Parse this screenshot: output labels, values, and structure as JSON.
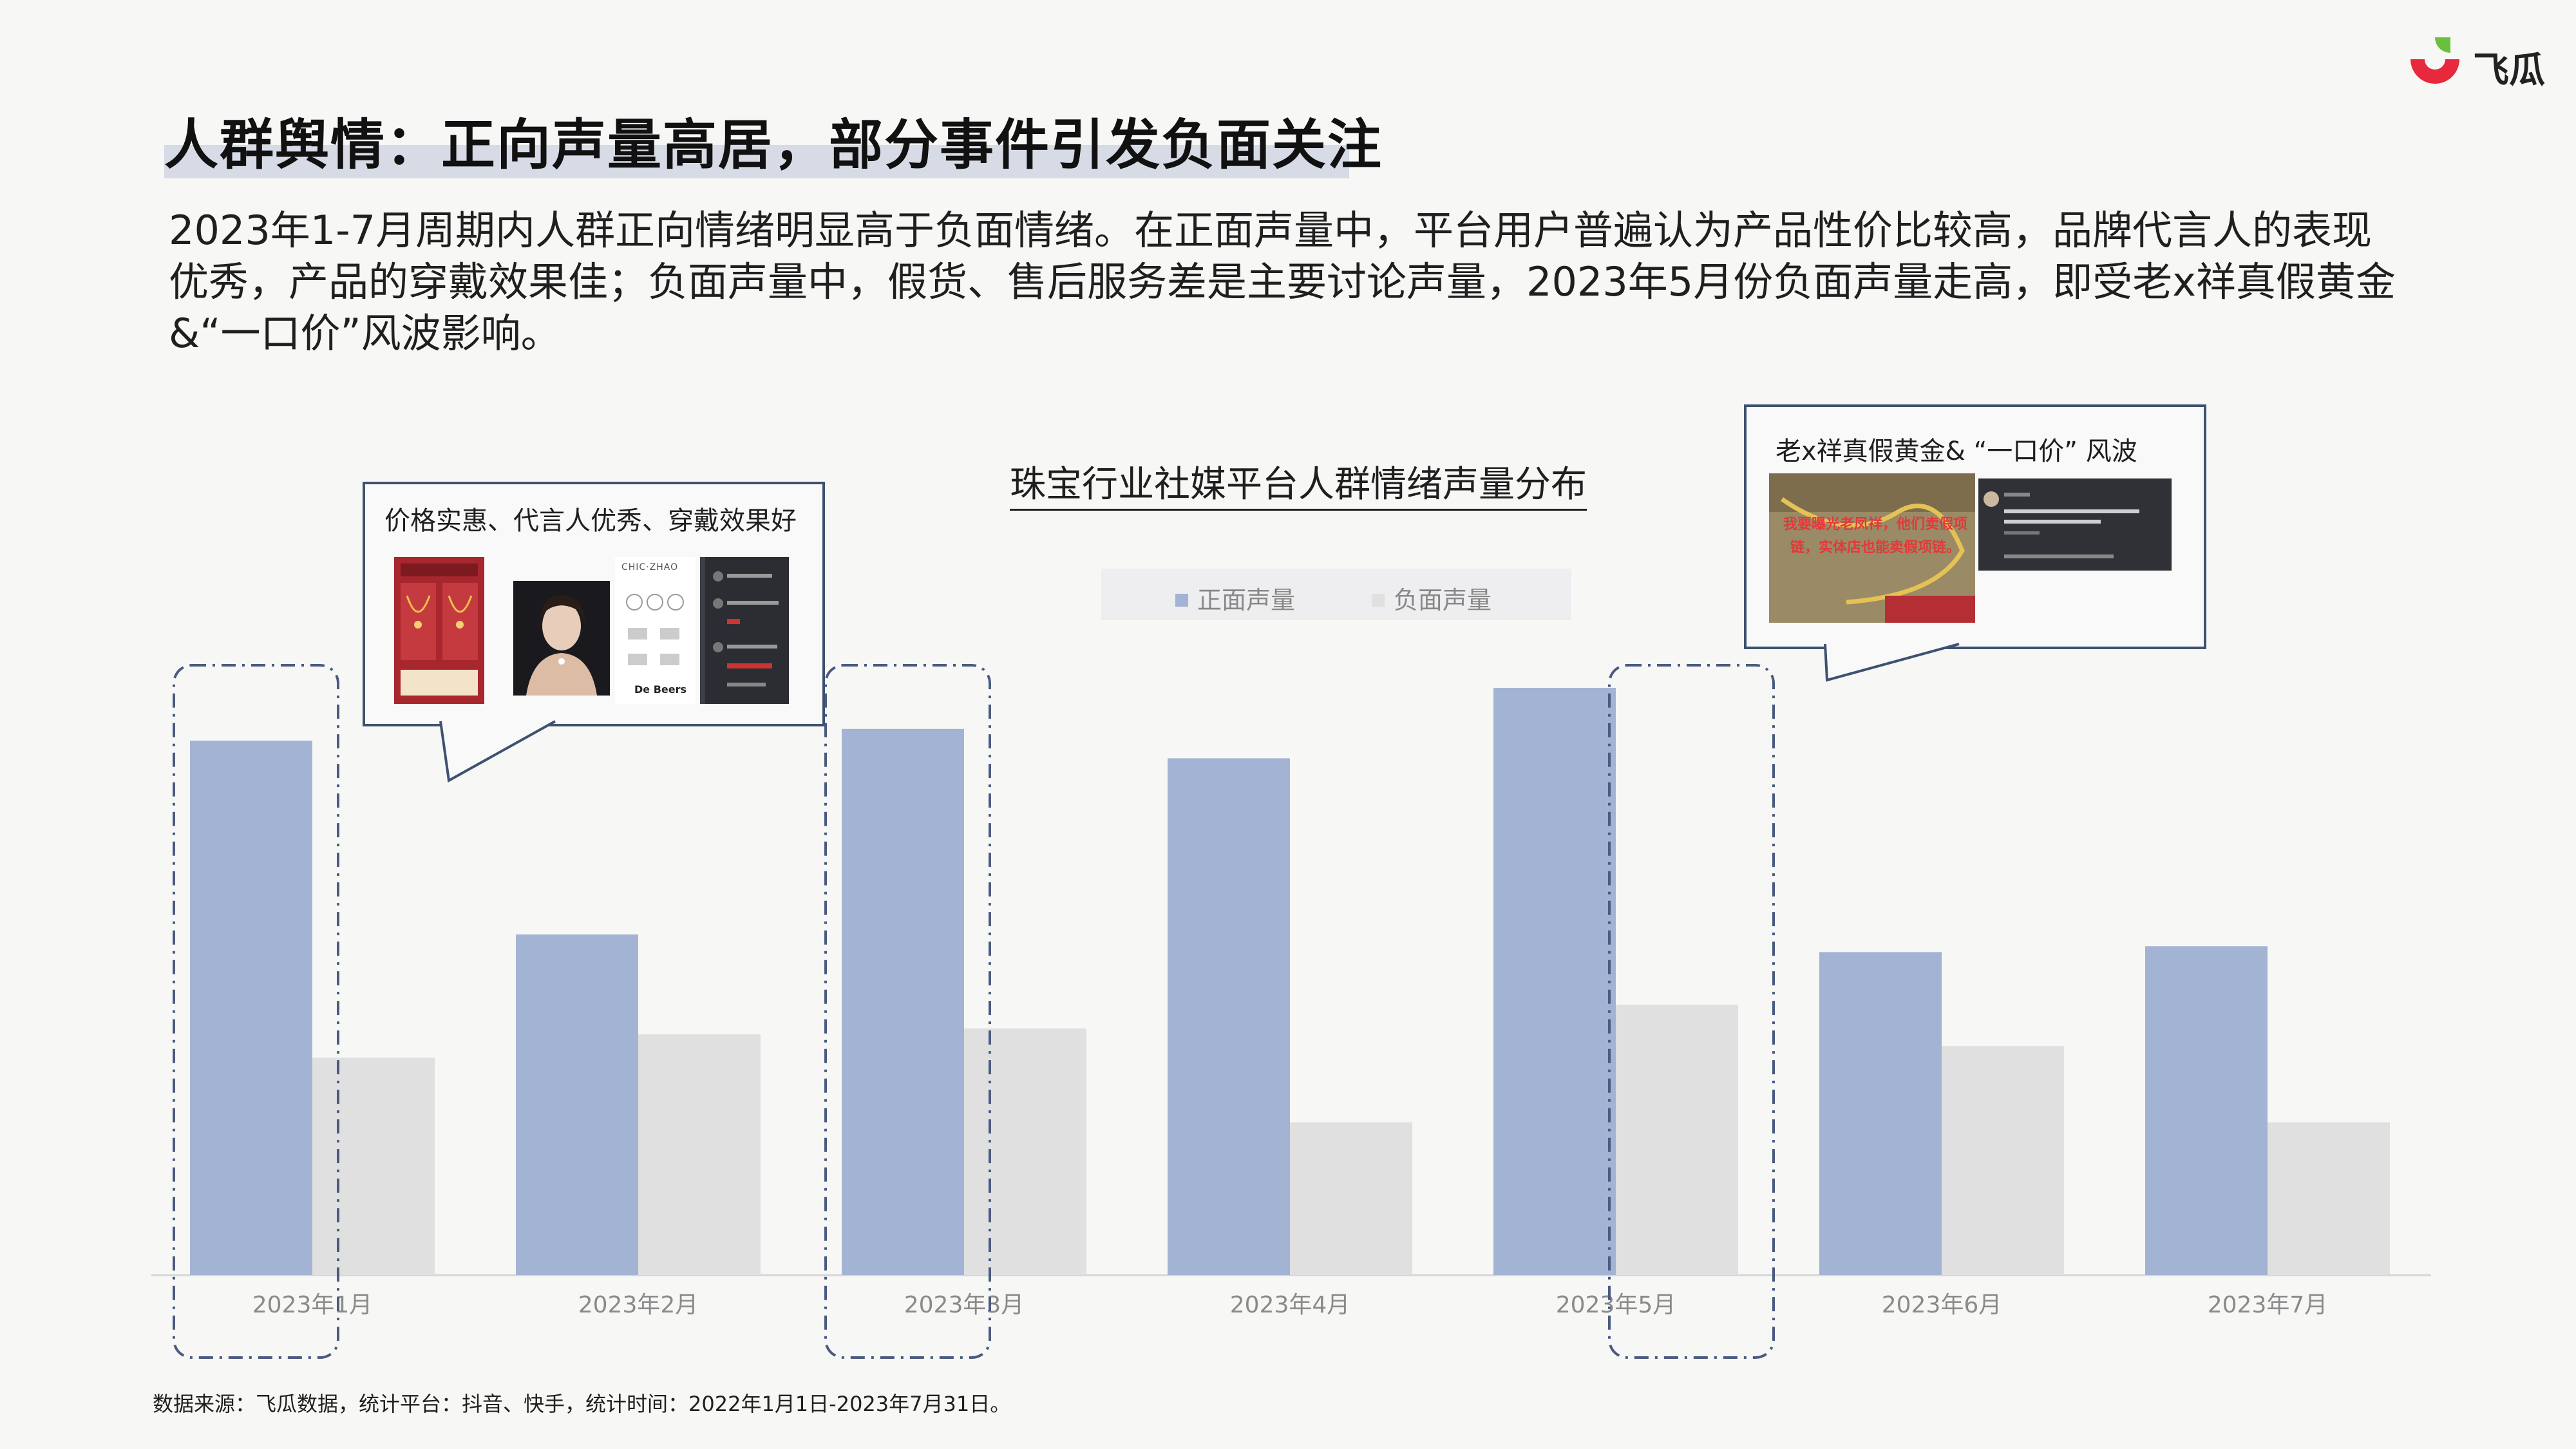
{
  "brand": {
    "name": "飞瓜"
  },
  "title": "人群舆情：正向声量高居，部分事件引发负面关注",
  "description": "2023年1-7月周期内人群正向情绪明显高于负面情绪。在正面声量中，平台用户普遍认为产品性价比较高，品牌代言人的表现优秀，产品的穿戴效果佳；负面声量中，假货、售后服务差是主要讨论声量，2023年5月份负面声量走高，即受老x祥真假黄金&“一口价”风波影响。",
  "callouts": {
    "left": {
      "title": "价格实惠、代言人优秀、穿戴效果好",
      "thumb_caption": "De Beers",
      "thumb_brand": "CHIC·ZHAO"
    },
    "right": {
      "title": "老x祥真假黄金& “一口价” 风波",
      "image_text": "我要曝光老凤祥，他们卖假项链，实体店也能卖假项链。"
    }
  },
  "colors": {
    "positive": "#a3b3d4",
    "negative": "#e0e0e0",
    "callout_border": "#3e5170",
    "highlight_frame": "#4a5a80"
  },
  "chart_data": {
    "type": "bar",
    "title": "珠宝行业社媒平台人群情绪声量分布",
    "categories": [
      "2023年1月",
      "2023年2月",
      "2023年3月",
      "2023年4月",
      "2023年5月",
      "2023年6月",
      "2023年7月"
    ],
    "series": [
      {
        "name": "正面声量",
        "values": [
          91,
          58,
          93,
          88,
          100,
          55,
          56
        ]
      },
      {
        "name": "负面声量",
        "values": [
          37,
          41,
          42,
          26,
          46,
          39,
          26
        ]
      }
    ],
    "ylim": [
      0,
      100
    ],
    "legend": "top-center",
    "grid": false,
    "highlighted_categories": [
      "2023年1月",
      "2023年3月",
      "2023年5月"
    ]
  },
  "source": "数据来源：飞瓜数据，统计平台：抖音、快手，统计时间：2022年1月1日-2023年7月31日。"
}
